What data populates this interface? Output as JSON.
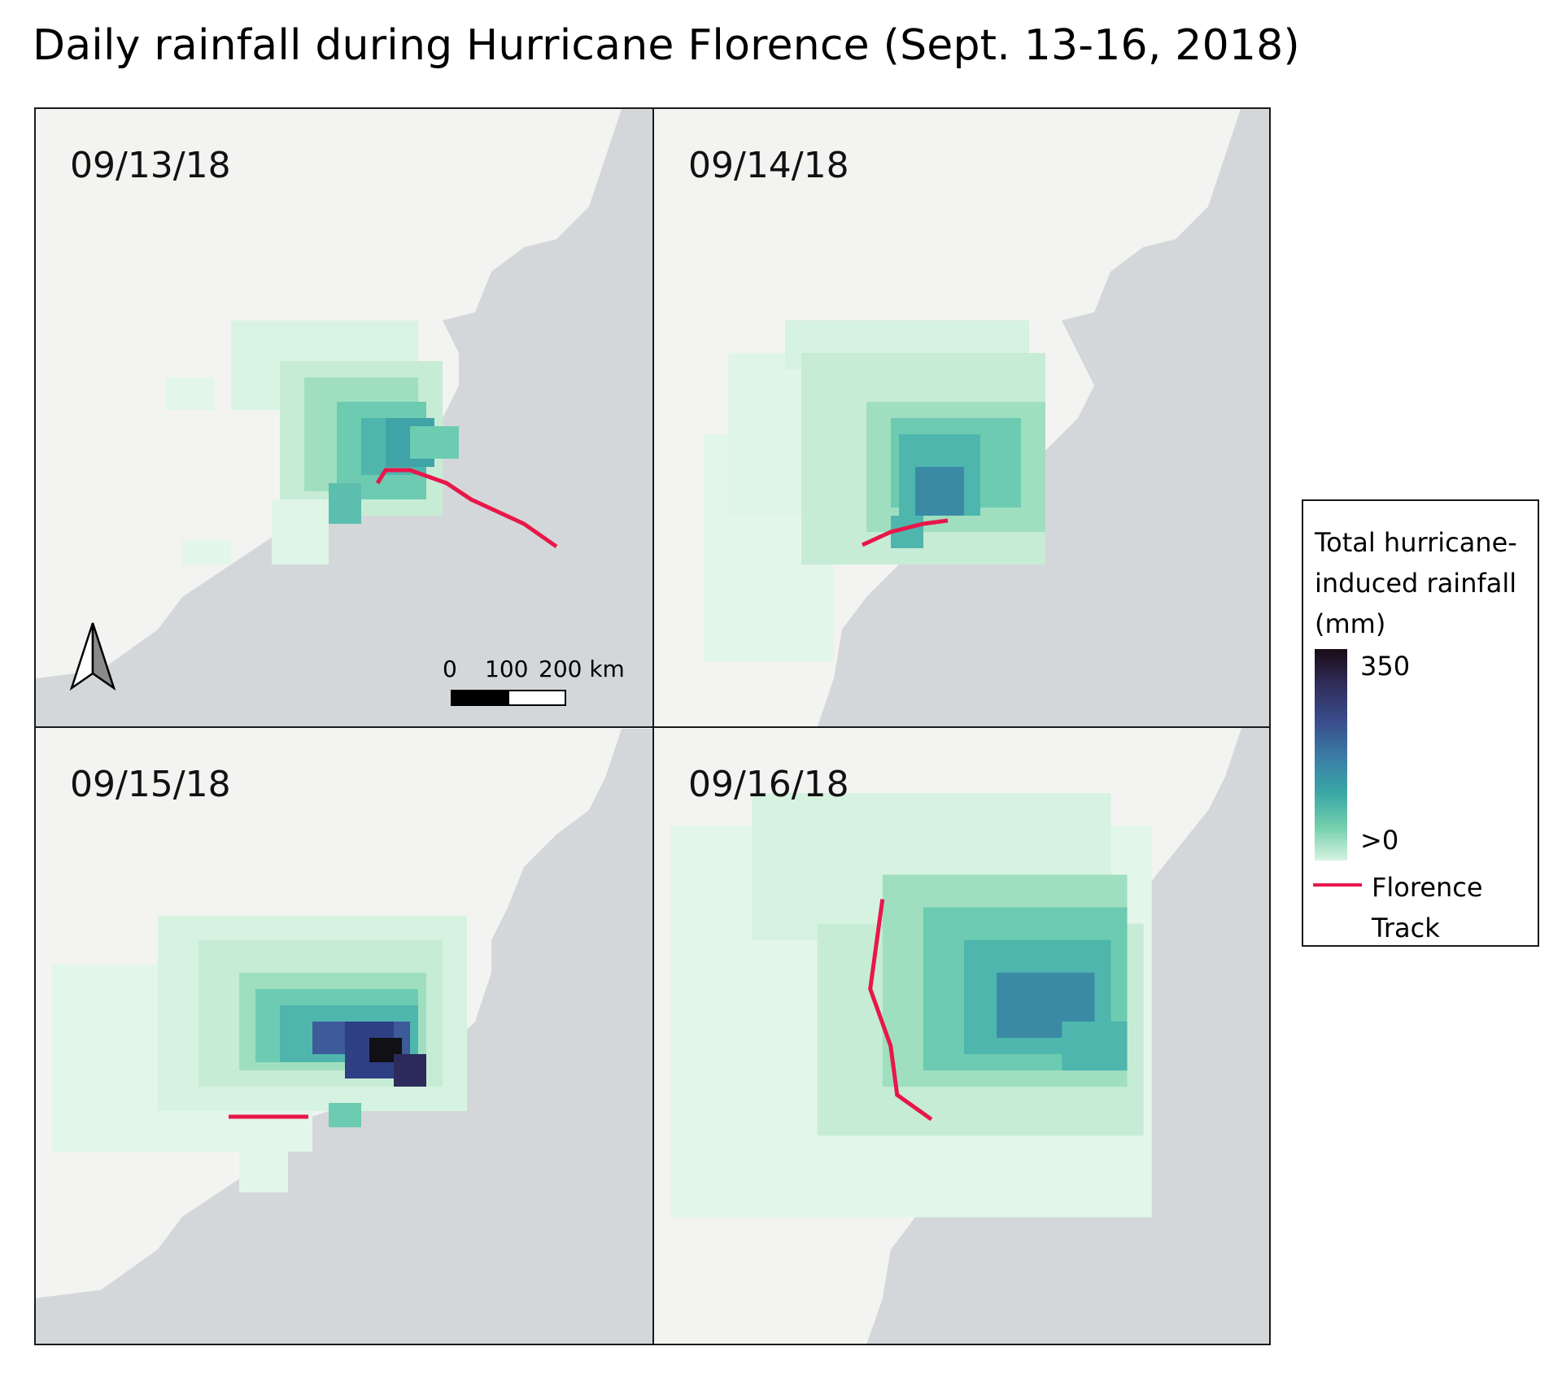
{
  "title": "Daily rainfall during Hurricane Florence (Sept. 13-16, 2018)",
  "panels": [
    {
      "date": "09/13/18"
    },
    {
      "date": "09/14/18"
    },
    {
      "date": "09/15/18"
    },
    {
      "date": "09/16/18"
    }
  ],
  "scale_bar": {
    "labels": [
      "0",
      "100",
      "200 km"
    ]
  },
  "legend": {
    "title": "Total hurricane-induced rainfall (mm)",
    "max_label": "350",
    "min_label": ">0",
    "track_label": "Florence Track",
    "ramp_colors": [
      "#1a0b15",
      "#2f2a55",
      "#3a4f8e",
      "#3b7fa6",
      "#3aa7a6",
      "#77d1ae",
      "#d8f3e2"
    ],
    "track_color": "#e8174a"
  },
  "colors": {
    "land": "#f3f3f1",
    "ocean": "#d4d7d9",
    "track": "#e8174a"
  },
  "icons": [
    "north-arrow-icon"
  ]
}
